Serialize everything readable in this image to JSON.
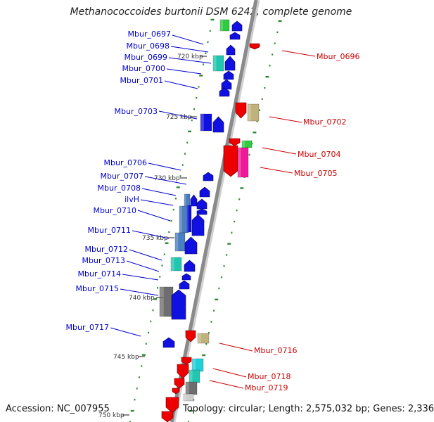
{
  "header": {
    "title": "Methanococcoides burtonii DSM 6242, complete genome"
  },
  "footer": {
    "accession": "Accession: NC_007955",
    "summary": "Topology: circular; Length: 2,575,032 bp; Genes: 2,336"
  },
  "ticks": [
    {
      "label": "720 kbp"
    },
    {
      "label": "725 kbp"
    },
    {
      "label": "730 kbp"
    },
    {
      "label": "735 kbp"
    },
    {
      "label": "740 kbp"
    },
    {
      "label": "745 kbp"
    },
    {
      "label": "750 kbp"
    }
  ],
  "forward_genes": [
    {
      "label": "Mbur_0697"
    },
    {
      "label": "Mbur_0698"
    },
    {
      "label": "Mbur_0699"
    },
    {
      "label": "Mbur_0700"
    },
    {
      "label": "Mbur_0701"
    },
    {
      "label": "Mbur_0703"
    },
    {
      "label": "Mbur_0706"
    },
    {
      "label": "Mbur_0707"
    },
    {
      "label": "Mbur_0708"
    },
    {
      "label": "ilvH"
    },
    {
      "label": "Mbur_0710"
    },
    {
      "label": "Mbur_0711"
    },
    {
      "label": "Mbur_0712"
    },
    {
      "label": "Mbur_0713"
    },
    {
      "label": "Mbur_0714"
    },
    {
      "label": "Mbur_0715"
    },
    {
      "label": "Mbur_0717"
    }
  ],
  "reverse_genes": [
    {
      "label": "Mbur_0696"
    },
    {
      "label": "Mbur_0702"
    },
    {
      "label": "Mbur_0704"
    },
    {
      "label": "Mbur_0705"
    },
    {
      "label": "Mbur_0716"
    },
    {
      "label": "Mbur_0718"
    },
    {
      "label": "Mbur_0719"
    }
  ],
  "colors": {
    "forward_label": "#0000cc",
    "reverse_label": "#cc0000",
    "backbone": "#8a8a8a",
    "gc_dash": "#2e8b2e",
    "gene_blue": "#1010e0",
    "gene_red": "#ee0000",
    "gene_green": "#2ecc40",
    "gene_teal": "#20c6b0",
    "gene_steel": "#4a7fc0",
    "gene_gray": "#6e6e6e",
    "gene_tan": "#bfb27a",
    "gene_magenta": "#ee1a9a",
    "gene_cyan": "#20d0d8"
  }
}
